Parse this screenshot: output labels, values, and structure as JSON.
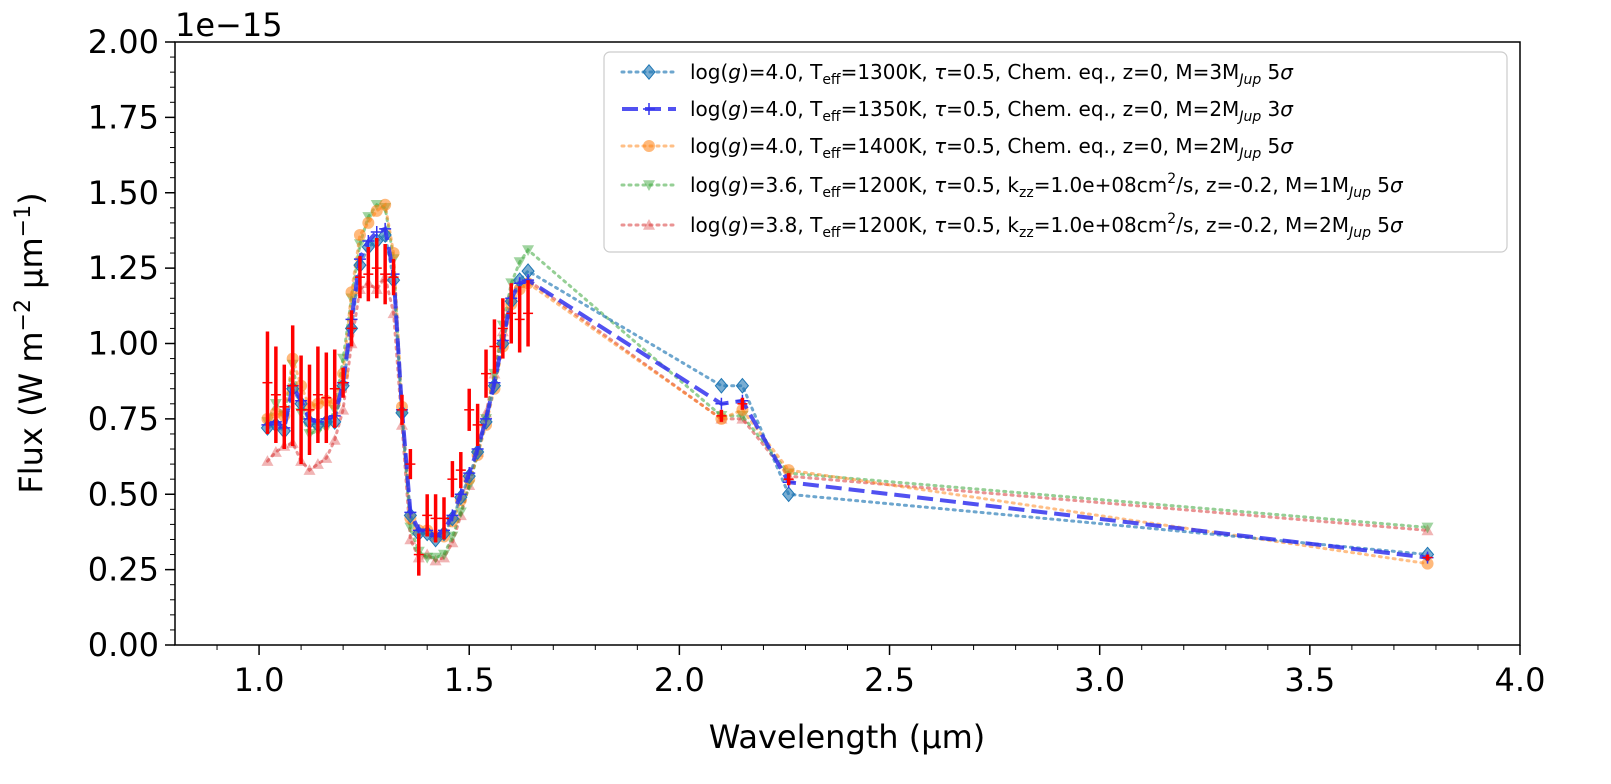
{
  "chart_data": {
    "type": "line",
    "xlabel": "Wavelength (µm)",
    "ylabel_parts": [
      "Flux (W m",
      "−2",
      " µm",
      "−1",
      ")"
    ],
    "offset_text": "1e−15",
    "xlim": [
      0.8,
      4.0
    ],
    "ylim": [
      0.0,
      2.0
    ],
    "x_ticks": [
      1.0,
      1.5,
      2.0,
      2.5,
      3.0,
      3.5,
      4.0
    ],
    "x_tick_labels": [
      "1.0",
      "1.5",
      "2.0",
      "2.5",
      "3.0",
      "3.5",
      "4.0"
    ],
    "y_ticks": [
      0.0,
      0.25,
      0.5,
      0.75,
      1.0,
      1.25,
      1.5,
      1.75,
      2.0
    ],
    "y_tick_labels": [
      "0.00",
      "0.25",
      "0.50",
      "0.75",
      "1.00",
      "1.25",
      "1.50",
      "1.75",
      "2.00"
    ],
    "legend_position": "top-right",
    "observed": {
      "color": "#ff0000",
      "points": [
        [
          1.02,
          0.87,
          0.17
        ],
        [
          1.04,
          0.83,
          0.16
        ],
        [
          1.06,
          0.79,
          0.14
        ],
        [
          1.08,
          0.86,
          0.2
        ],
        [
          1.1,
          0.78,
          0.18
        ],
        [
          1.12,
          0.78,
          0.15
        ],
        [
          1.14,
          0.83,
          0.16
        ],
        [
          1.16,
          0.82,
          0.15
        ],
        [
          1.18,
          0.85,
          0.13
        ],
        [
          1.2,
          0.87,
          0.05
        ],
        [
          1.22,
          1.05,
          0.06
        ],
        [
          1.24,
          1.22,
          0.07
        ],
        [
          1.26,
          1.23,
          0.09
        ],
        [
          1.28,
          1.25,
          0.1
        ],
        [
          1.3,
          1.23,
          0.1
        ],
        [
          1.32,
          1.22,
          0.06
        ],
        [
          1.34,
          0.78,
          0.05
        ],
        [
          1.36,
          0.6,
          0.05
        ],
        [
          1.38,
          0.3,
          0.07
        ],
        [
          1.4,
          0.43,
          0.07
        ],
        [
          1.42,
          0.42,
          0.08
        ],
        [
          1.44,
          0.42,
          0.07
        ],
        [
          1.46,
          0.55,
          0.06
        ],
        [
          1.48,
          0.58,
          0.06
        ],
        [
          1.5,
          0.78,
          0.07
        ],
        [
          1.52,
          0.73,
          0.07
        ],
        [
          1.54,
          0.9,
          0.08
        ],
        [
          1.56,
          0.99,
          0.09
        ],
        [
          1.58,
          1.05,
          0.1
        ],
        [
          1.6,
          1.1,
          0.1
        ],
        [
          1.62,
          1.08,
          0.11
        ],
        [
          1.64,
          1.1,
          0.11
        ],
        [
          2.1,
          0.76,
          0.02
        ],
        [
          2.15,
          0.8,
          0.02
        ],
        [
          2.26,
          0.55,
          0.02
        ],
        [
          3.78,
          0.29,
          0.01
        ]
      ]
    },
    "series": [
      {
        "name": "log(g)=4.0, T_eff=1300K, τ=0.5, Chem. eq., z=0, M=3M_Jup 5σ",
        "color": "#1f77b4",
        "style": "dotted",
        "marker": "diamond",
        "x": [
          1.02,
          1.04,
          1.06,
          1.08,
          1.1,
          1.12,
          1.14,
          1.16,
          1.18,
          1.2,
          1.22,
          1.24,
          1.26,
          1.28,
          1.3,
          1.32,
          1.34,
          1.36,
          1.38,
          1.4,
          1.42,
          1.44,
          1.46,
          1.48,
          1.5,
          1.52,
          1.54,
          1.56,
          1.58,
          1.6,
          1.62,
          1.64,
          2.1,
          2.15,
          2.26,
          3.78
        ],
        "y": [
          0.72,
          0.73,
          0.71,
          0.85,
          0.8,
          0.74,
          0.73,
          0.74,
          0.74,
          0.86,
          1.05,
          1.26,
          1.32,
          1.34,
          1.36,
          1.21,
          0.77,
          0.43,
          0.37,
          0.37,
          0.35,
          0.37,
          0.42,
          0.49,
          0.56,
          0.64,
          0.74,
          0.86,
          1.0,
          1.14,
          1.21,
          1.24,
          0.86,
          0.86,
          0.5,
          0.3
        ]
      },
      {
        "name": "log(g)=4.0, T_eff=1350K, τ=0.5, Chem. eq., z=0, M=2M_Jup 3σ",
        "color": "#3333ee",
        "style": "dashed",
        "marker": "plus",
        "x": [
          1.02,
          1.04,
          1.06,
          1.08,
          1.1,
          1.12,
          1.14,
          1.16,
          1.18,
          1.2,
          1.22,
          1.24,
          1.26,
          1.28,
          1.3,
          1.32,
          1.34,
          1.36,
          1.38,
          1.4,
          1.42,
          1.44,
          1.46,
          1.48,
          1.5,
          1.52,
          1.54,
          1.56,
          1.58,
          1.6,
          1.62,
          1.64,
          2.1,
          2.15,
          2.26,
          3.78
        ],
        "y": [
          0.73,
          0.74,
          0.72,
          0.86,
          0.81,
          0.75,
          0.74,
          0.75,
          0.76,
          0.87,
          1.08,
          1.28,
          1.34,
          1.37,
          1.38,
          1.23,
          0.78,
          0.44,
          0.38,
          0.38,
          0.36,
          0.38,
          0.43,
          0.5,
          0.57,
          0.65,
          0.75,
          0.87,
          1.01,
          1.15,
          1.2,
          1.21,
          0.8,
          0.81,
          0.54,
          0.29
        ]
      },
      {
        "name": "log(g)=4.0, T_eff=1400K, τ=0.5, Chem. eq., z=0, M=2M_Jup 5σ",
        "color": "#ff7f0e",
        "style": "dotted",
        "marker": "circle",
        "x": [
          1.02,
          1.04,
          1.06,
          1.08,
          1.1,
          1.12,
          1.14,
          1.16,
          1.18,
          1.2,
          1.22,
          1.24,
          1.26,
          1.28,
          1.3,
          1.32,
          1.34,
          1.36,
          1.38,
          1.4,
          1.42,
          1.44,
          1.46,
          1.48,
          1.5,
          1.52,
          1.54,
          1.56,
          1.58,
          1.6,
          1.62,
          1.64,
          2.1,
          2.15,
          2.26,
          3.78
        ],
        "y": [
          0.75,
          0.77,
          0.76,
          0.95,
          0.86,
          0.79,
          0.8,
          0.81,
          0.8,
          0.9,
          1.17,
          1.36,
          1.4,
          1.44,
          1.46,
          1.3,
          0.79,
          0.42,
          0.38,
          0.38,
          0.36,
          0.36,
          0.41,
          0.48,
          0.55,
          0.63,
          0.73,
          0.85,
          0.99,
          1.13,
          1.18,
          1.2,
          0.75,
          0.78,
          0.58,
          0.27
        ]
      },
      {
        "name": "log(g)=3.6, T_eff=1200K, τ=0.5, k_zz=1.0e+08cm²/s, z=-0.2, M=1M_Jup 5σ",
        "color": "#2ca02c",
        "style": "dotted",
        "marker": "triangle-down",
        "x": [
          1.02,
          1.04,
          1.06,
          1.08,
          1.1,
          1.12,
          1.14,
          1.16,
          1.18,
          1.2,
          1.22,
          1.24,
          1.26,
          1.28,
          1.3,
          1.32,
          1.34,
          1.36,
          1.38,
          1.4,
          1.42,
          1.44,
          1.46,
          1.48,
          1.5,
          1.52,
          1.54,
          1.56,
          1.58,
          1.6,
          1.62,
          1.64,
          2.1,
          2.15,
          2.26,
          3.78
        ],
        "y": [
          0.74,
          0.8,
          0.76,
          0.93,
          0.77,
          0.7,
          0.71,
          0.72,
          0.78,
          0.95,
          1.15,
          1.33,
          1.42,
          1.46,
          1.45,
          1.28,
          0.76,
          0.39,
          0.31,
          0.29,
          0.29,
          0.3,
          0.36,
          0.44,
          0.53,
          0.63,
          0.75,
          0.9,
          1.06,
          1.2,
          1.27,
          1.31,
          0.76,
          0.76,
          0.57,
          0.39
        ]
      },
      {
        "name": "log(g)=3.8, T_eff=1200K, τ=0.5, k_zz=1.0e+08cm²/s, z=-0.2, M=2M_Jup 5σ",
        "color": "#d62728",
        "style": "dotted",
        "marker": "triangle-up",
        "x": [
          1.02,
          1.04,
          1.06,
          1.08,
          1.1,
          1.12,
          1.14,
          1.16,
          1.18,
          1.2,
          1.22,
          1.24,
          1.26,
          1.28,
          1.3,
          1.32,
          1.34,
          1.36,
          1.38,
          1.4,
          1.42,
          1.44,
          1.46,
          1.48,
          1.5,
          1.52,
          1.54,
          1.56,
          1.58,
          1.6,
          1.62,
          1.64,
          2.1,
          2.15,
          2.26,
          3.78
        ],
        "y": [
          0.61,
          0.64,
          0.66,
          0.67,
          0.61,
          0.58,
          0.6,
          0.62,
          0.68,
          0.78,
          1.0,
          1.18,
          1.2,
          1.18,
          1.22,
          1.1,
          0.73,
          0.35,
          0.29,
          0.3,
          0.28,
          0.29,
          0.34,
          0.43,
          0.53,
          0.64,
          0.77,
          0.9,
          1.04,
          1.16,
          1.2,
          1.21,
          0.75,
          0.75,
          0.56,
          0.38
        ]
      }
    ],
    "legend": [
      {
        "pre": "log(",
        "it1": "g",
        "mid": ")=4.0, T",
        "sub": "eff",
        "post": "=1300K, ",
        "tau": "τ",
        "rest": "=0.5, Chem. eq., z=0, M=3M",
        "jup": "Jup",
        "end": " 5",
        "sig": "σ"
      },
      {
        "pre": "log(",
        "it1": "g",
        "mid": ")=4.0, T",
        "sub": "eff",
        "post": "=1350K, ",
        "tau": "τ",
        "rest": "=0.5, Chem. eq., z=0, M=2M",
        "jup": "Jup",
        "end": " 3",
        "sig": "σ"
      },
      {
        "pre": "log(",
        "it1": "g",
        "mid": ")=4.0, T",
        "sub": "eff",
        "post": "=1400K, ",
        "tau": "τ",
        "rest": "=0.5, Chem. eq., z=0, M=2M",
        "jup": "Jup",
        "end": " 5",
        "sig": "σ"
      },
      {
        "pre": "log(",
        "it1": "g",
        "mid": ")=3.6, T",
        "sub": "eff",
        "post": "=1200K, ",
        "tau": "τ",
        "rest": "=0.5, k",
        "kzz": "zz",
        "kzz_rest": "=1.0e+08cm",
        "sup": "2",
        "rest2": "/s, z=-0.2, M=1M",
        "jup": "Jup",
        "end": " 5",
        "sig": "σ"
      },
      {
        "pre": "log(",
        "it1": "g",
        "mid": ")=3.8, T",
        "sub": "eff",
        "post": "=1200K, ",
        "tau": "τ",
        "rest": "=0.5, k",
        "kzz": "zz",
        "kzz_rest": "=1.0e+08cm",
        "sup": "2",
        "rest2": "/s, z=-0.2, M=2M",
        "jup": "Jup",
        "end": " 5",
        "sig": "σ"
      }
    ]
  }
}
